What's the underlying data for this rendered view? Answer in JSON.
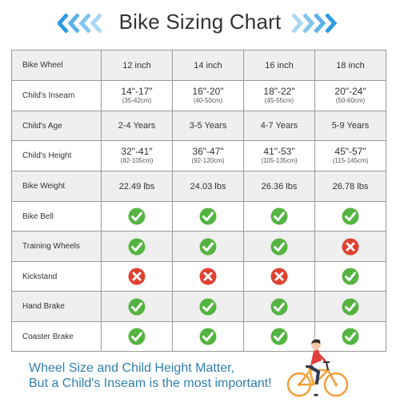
{
  "title": "Bike Sizing Chart",
  "colors": {
    "chevron_dark": "#2f9be0",
    "chevron_light": "#a9d6f4",
    "check_green": "#55b441",
    "cross_red": "#e0412f",
    "footer_blue": "#2f7fb0",
    "row_shade": "#efefef"
  },
  "table": {
    "header": {
      "label": "Bike Wheel",
      "sizes": [
        "12 inch",
        "14 inch",
        "16 inch",
        "18 inch"
      ]
    },
    "inseam": {
      "label": "Child's Inseam",
      "values": [
        {
          "main": "14\"-17\"",
          "sub": "(35-42cm)"
        },
        {
          "main": "16\"-20\"",
          "sub": "(40-50cm)"
        },
        {
          "main": "18\"-22\"",
          "sub": "(45-55cm)"
        },
        {
          "main": "20\"-24\"",
          "sub": "(50-60cm)"
        }
      ]
    },
    "age": {
      "label": "Child's Age",
      "values": [
        "2-4 Years",
        "3-5 Years",
        "4-7 Years",
        "5-9 Years"
      ]
    },
    "height": {
      "label": "Child's Height",
      "values": [
        {
          "main": "32\"-41\"",
          "sub": "(82-105cm)"
        },
        {
          "main": "36\"-47\"",
          "sub": "(92-120cm)"
        },
        {
          "main": "41\"-53\"",
          "sub": "(105-135cm)"
        },
        {
          "main": "45\"-57\"",
          "sub": "(115-145cm)"
        }
      ]
    },
    "weight": {
      "label": "Bike Weight",
      "values": [
        "22.49 lbs",
        "24.03 lbs",
        "26.36 lbs",
        "26.78 lbs"
      ]
    },
    "features": [
      {
        "label": "Bike Bell",
        "marks": [
          "check-icon",
          "check-icon",
          "check-icon",
          "check-icon"
        ]
      },
      {
        "label": "Training Wheels",
        "marks": [
          "check-icon",
          "check-icon",
          "check-icon",
          "cross-icon"
        ]
      },
      {
        "label": "Kickstand",
        "marks": [
          "cross-icon",
          "cross-icon",
          "cross-icon",
          "check-icon"
        ]
      },
      {
        "label": "Hand Brake",
        "marks": [
          "check-icon",
          "check-icon",
          "check-icon",
          "check-icon"
        ]
      },
      {
        "label": "Coaster Brake",
        "marks": [
          "check-icon",
          "check-icon",
          "check-icon",
          "check-icon"
        ]
      }
    ]
  },
  "footer": {
    "line1": "Wheel Size and Child Height Matter,",
    "line2": "But a Child's Inseam is the most important!"
  }
}
